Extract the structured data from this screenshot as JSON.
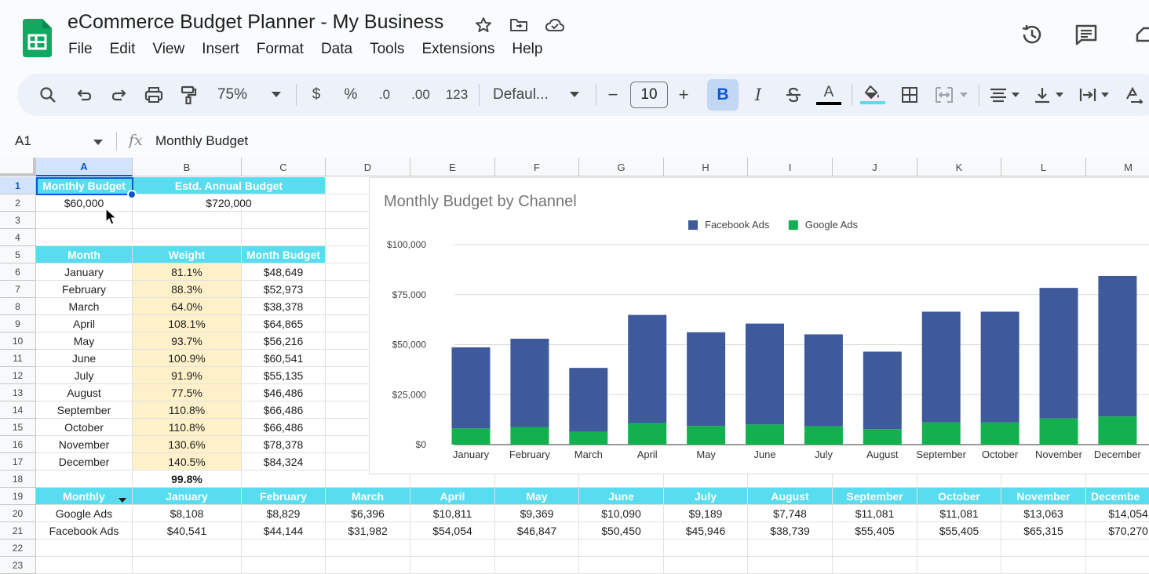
{
  "app": {
    "title": "eCommerce Budget Planner - My Business",
    "menu": [
      "File",
      "Edit",
      "View",
      "Insert",
      "Format",
      "Data",
      "Tools",
      "Extensions",
      "Help"
    ]
  },
  "icons": {
    "logo": "sheets-logo-icon",
    "star": "star-icon",
    "move": "move-to-folder-icon",
    "cloud": "cloud-saved-icon",
    "history": "version-history-icon",
    "comments": "comments-icon"
  },
  "toolbar": {
    "zoom": "75%",
    "currency": "$",
    "percent": "%",
    "decrease_decimal": ".0",
    "increase_decimal": ".00",
    "number_format": "123",
    "font": "Defaul...",
    "font_size": "10",
    "bold": "B",
    "italic": "I",
    "text_color": "A",
    "minus": "−",
    "plus": "+"
  },
  "formula_bar": {
    "name_box": "A1",
    "fx": "fx",
    "value": "Monthly Budget"
  },
  "colors": {
    "header_cyan": "#58dcef",
    "weight_cream": "#fef0c8",
    "facebook": "#3f5a9a",
    "google": "#12b04e",
    "selection": "#0b57d0"
  },
  "grid": {
    "columns": [
      "A",
      "B",
      "C",
      "D",
      "E",
      "F",
      "G",
      "H",
      "I",
      "J",
      "K",
      "L",
      "M"
    ],
    "rows": [
      "1",
      "2",
      "3",
      "4",
      "5",
      "6",
      "7",
      "8",
      "9",
      "10",
      "11",
      "12",
      "13",
      "14",
      "15",
      "16",
      "17",
      "18",
      "19",
      "20",
      "21",
      "22",
      "23"
    ],
    "r1": {
      "a": "Monthly Budget",
      "bc": "Estd. Annual Budget"
    },
    "r2": {
      "a": "$60,000",
      "bc": "$720,000"
    },
    "r5": {
      "a": "Month",
      "b": "Weight",
      "c": "Month Budget"
    },
    "months_table": [
      {
        "month": "January",
        "weight": "81.1%",
        "budget": "$48,649"
      },
      {
        "month": "February",
        "weight": "88.3%",
        "budget": "$52,973"
      },
      {
        "month": "March",
        "weight": "64.0%",
        "budget": "$38,378"
      },
      {
        "month": "April",
        "weight": "108.1%",
        "budget": "$64,865"
      },
      {
        "month": "May",
        "weight": "93.7%",
        "budget": "$56,216"
      },
      {
        "month": "June",
        "weight": "100.9%",
        "budget": "$60,541"
      },
      {
        "month": "July",
        "weight": "91.9%",
        "budget": "$55,135"
      },
      {
        "month": "August",
        "weight": "77.5%",
        "budget": "$46,486"
      },
      {
        "month": "September",
        "weight": "110.8%",
        "budget": "$66,486"
      },
      {
        "month": "October",
        "weight": "110.8%",
        "budget": "$66,486"
      },
      {
        "month": "November",
        "weight": "130.6%",
        "budget": "$78,378"
      },
      {
        "month": "December",
        "weight": "140.5%",
        "budget": "$84,324"
      }
    ],
    "r18_total": "99.8%",
    "r19": [
      "Monthly",
      "January",
      "February",
      "March",
      "April",
      "May",
      "June",
      "July",
      "August",
      "September",
      "October",
      "November",
      "Decembe"
    ],
    "r20": [
      "Google Ads",
      "$8,108",
      "$8,829",
      "$6,396",
      "$10,811",
      "$9,369",
      "$10,090",
      "$9,189",
      "$7,748",
      "$11,081",
      "$11,081",
      "$13,063",
      "$14,054"
    ],
    "r21": [
      "Facebook Ads",
      "$40,541",
      "$44,144",
      "$31,982",
      "$54,054",
      "$46,847",
      "$50,450",
      "$45,946",
      "$38,739",
      "$55,405",
      "$55,405",
      "$65,315",
      "$70,270"
    ]
  },
  "chart_data": {
    "type": "bar",
    "stacked": true,
    "title": "Monthly Budget by Channel",
    "categories": [
      "January",
      "February",
      "March",
      "April",
      "May",
      "June",
      "July",
      "August",
      "September",
      "October",
      "November",
      "December"
    ],
    "series": [
      {
        "name": "Facebook Ads",
        "color": "#3f5a9a",
        "values": [
          40541,
          44144,
          31982,
          54054,
          46847,
          50450,
          45946,
          38739,
          55405,
          55405,
          65315,
          70270
        ]
      },
      {
        "name": "Google Ads",
        "color": "#12b04e",
        "values": [
          8108,
          8829,
          6396,
          10811,
          9369,
          10090,
          9189,
          7748,
          11081,
          11081,
          13063,
          14054
        ]
      }
    ],
    "ylim": [
      0,
      100000
    ],
    "yticks": [
      "$0",
      "$25,000",
      "$50,000",
      "$75,000",
      "$100,000"
    ],
    "legend": "top",
    "grid": true
  }
}
